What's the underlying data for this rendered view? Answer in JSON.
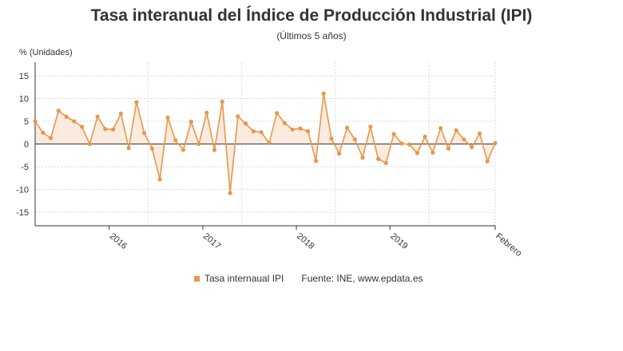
{
  "chart_data": {
    "type": "line",
    "title": "Tasa interanual del Índice de Producción Industrial (IPI)",
    "subtitle": "(Últimos 5 años)",
    "ylabel": "% (Unidades)",
    "ylim": [
      -18,
      18
    ],
    "yticks": [
      -15,
      -10,
      -5,
      0,
      5,
      10,
      15
    ],
    "xticks": [
      "2016",
      "2017",
      "2018",
      "2019",
      "Febrero"
    ],
    "legend": "bottom",
    "grid": true,
    "colors": {
      "line": "#e8974a",
      "fill": "#fbe9da",
      "grid": "#d9d9d9",
      "axis": "#333333"
    },
    "series": [
      {
        "name": "Tasa internaual IPI",
        "values": [
          5.0,
          2.5,
          1.3,
          7.3,
          6.0,
          5.0,
          3.8,
          0.0,
          6.0,
          3.3,
          3.2,
          6.7,
          -0.9,
          9.2,
          2.4,
          -1.0,
          -7.8,
          5.8,
          0.8,
          -1.3,
          4.9,
          0.0,
          6.9,
          -1.3,
          9.3,
          -10.8,
          6.1,
          4.5,
          2.8,
          2.6,
          0.2,
          6.8,
          4.6,
          3.2,
          3.4,
          2.8,
          -3.7,
          11.1,
          1.2,
          -2.1,
          3.6,
          1.0,
          -3.0,
          3.8,
          -3.3,
          -4.2,
          2.2,
          0.1,
          -0.1,
          -2.0,
          1.6,
          -1.9,
          3.5,
          -1.0,
          3.0,
          1.0,
          -0.7,
          2.3,
          -3.8,
          0.2
        ]
      }
    ]
  },
  "legend": {
    "series_label": "Tasa internaual IPI",
    "source": "Fuente: INE, www.epdata.es"
  }
}
